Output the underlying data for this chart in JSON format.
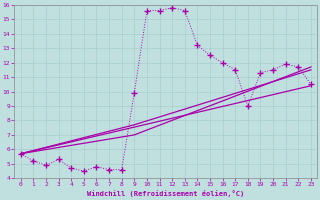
{
  "xlabel": "Windchill (Refroidissement éolien,°C)",
  "xlim": [
    -0.5,
    23.5
  ],
  "ylim": [
    4,
    16
  ],
  "xticks": [
    0,
    1,
    2,
    3,
    4,
    5,
    6,
    7,
    8,
    9,
    10,
    11,
    12,
    13,
    14,
    15,
    16,
    17,
    18,
    19,
    20,
    21,
    22,
    23
  ],
  "yticks": [
    4,
    5,
    6,
    7,
    8,
    9,
    10,
    11,
    12,
    13,
    14,
    15,
    16
  ],
  "bg_color": "#c0e0e0",
  "line_color": "#aa00aa",
  "grid_color": "#b0d0d0",
  "main_line": {
    "x": [
      0,
      1,
      2,
      3,
      4,
      5,
      6,
      7,
      8,
      9,
      10,
      11,
      12,
      13,
      14,
      15,
      16,
      17,
      18,
      19,
      20,
      21,
      22,
      23
    ],
    "y": [
      5.7,
      5.2,
      4.9,
      5.3,
      4.7,
      4.5,
      4.8,
      4.6,
      4.6,
      9.9,
      15.6,
      15.6,
      15.8,
      15.6,
      13.2,
      12.5,
      12.0,
      11.5,
      9.0,
      11.3,
      11.5,
      11.9,
      11.7,
      10.5
    ]
  },
  "straight_lines": [
    {
      "x": [
        0,
        23
      ],
      "y": [
        5.7,
        10.4
      ]
    },
    {
      "x": [
        0,
        9,
        23
      ],
      "y": [
        5.7,
        7.7,
        11.5
      ]
    },
    {
      "x": [
        0,
        9,
        23
      ],
      "y": [
        5.7,
        7.0,
        11.7
      ]
    }
  ]
}
